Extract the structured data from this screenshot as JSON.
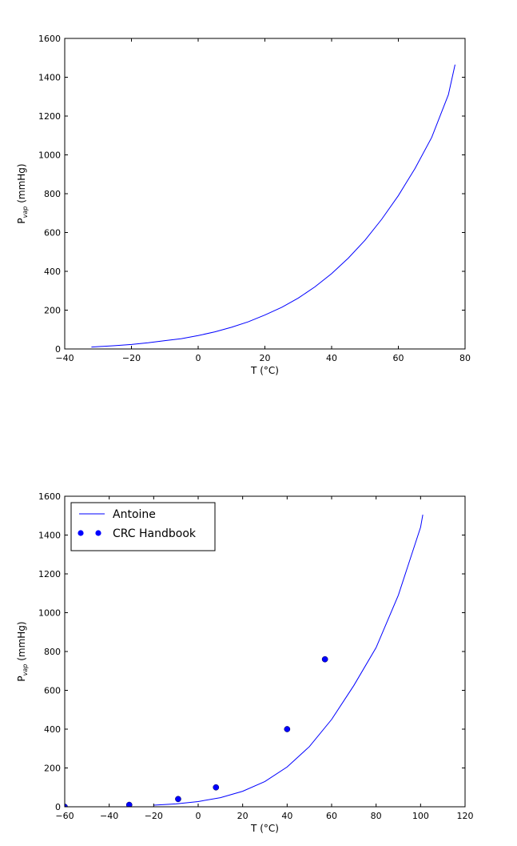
{
  "chart_data": [
    {
      "type": "line",
      "xlabel": "T (°C)",
      "ylabel_main": "P",
      "ylabel_sub": "vap",
      "ylabel_unit": "(mmHg)",
      "xlim": [
        -40,
        80
      ],
      "ylim": [
        0,
        1600
      ],
      "xticks": [
        -40,
        -20,
        0,
        20,
        40,
        60,
        80
      ],
      "yticks": [
        0,
        200,
        400,
        600,
        800,
        1000,
        1200,
        1400,
        1600
      ],
      "series": [
        {
          "kind": "line",
          "color": "#0000ff",
          "x": [
            -32,
            -25,
            -20,
            -15,
            -10,
            -5,
            0,
            5,
            10,
            15,
            20,
            25,
            30,
            35,
            40,
            45,
            50,
            55,
            60,
            65,
            70,
            75,
            77
          ],
          "y": [
            10,
            17,
            23,
            32,
            43,
            53,
            69,
            88,
            112,
            140,
            175,
            214,
            262,
            320,
            388,
            468,
            560,
            668,
            790,
            930,
            1090,
            1310,
            1465
          ]
        }
      ],
      "grid": false
    },
    {
      "type": "line",
      "xlabel": "T (°C)",
      "ylabel_main": "P",
      "ylabel_sub": "vap",
      "ylabel_unit": "(mmHg)",
      "xlim": [
        -60,
        120
      ],
      "ylim": [
        0,
        1600
      ],
      "xticks": [
        -60,
        -40,
        -20,
        0,
        20,
        40,
        60,
        80,
        100,
        120
      ],
      "yticks": [
        0,
        200,
        400,
        600,
        800,
        1000,
        1200,
        1400,
        1600
      ],
      "legend_position": "top-left",
      "series": [
        {
          "name": "Antoine",
          "kind": "line",
          "color": "#0000ff",
          "x": [
            -20,
            -10,
            0,
            10,
            20,
            30,
            40,
            50,
            60,
            70,
            80,
            90,
            100,
            101
          ],
          "y": [
            8,
            15,
            27,
            47,
            80,
            130,
            205,
            310,
            450,
            625,
            820,
            1090,
            1440,
            1505
          ]
        },
        {
          "name": "CRC Handbook",
          "kind": "scatter",
          "color": "#0000ff",
          "x": [
            -60,
            -31,
            -9,
            8,
            40,
            57
          ],
          "y": [
            0,
            10,
            40,
            100,
            400,
            760
          ]
        }
      ],
      "grid": false
    }
  ]
}
